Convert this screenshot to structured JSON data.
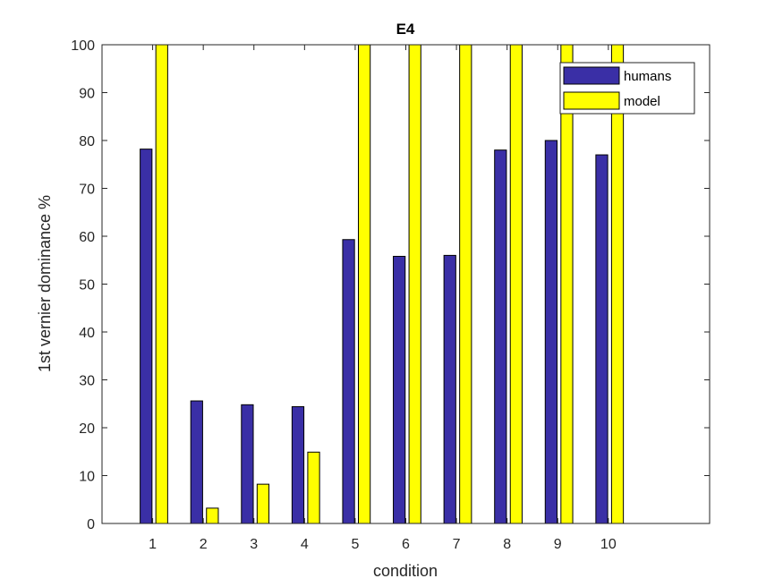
{
  "chart_data": {
    "type": "bar",
    "title": "E4",
    "xlabel": "condition",
    "ylabel": "1st vernier dominance %",
    "categories": [
      "1",
      "2",
      "3",
      "4",
      "5",
      "6",
      "7",
      "8",
      "9",
      "10"
    ],
    "xlim": [
      0,
      12
    ],
    "ylim": [
      0,
      100
    ],
    "yticks": [
      0,
      10,
      20,
      30,
      40,
      50,
      60,
      70,
      80,
      90,
      100
    ],
    "grid": false,
    "legend_position": "top-right",
    "series": [
      {
        "name": "humans",
        "color": "#3a2fa6",
        "values": [
          78.2,
          25.6,
          24.8,
          24.4,
          59.3,
          55.8,
          56.0,
          78.0,
          80.0,
          77.0
        ]
      },
      {
        "name": "model",
        "color": "#ffff00",
        "values": [
          100,
          3.2,
          8.2,
          14.9,
          100,
          100,
          100,
          100,
          100,
          100
        ]
      }
    ]
  }
}
